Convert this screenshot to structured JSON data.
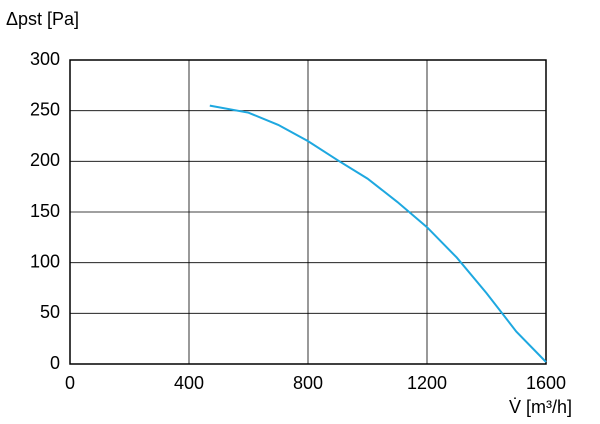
{
  "chart_data": {
    "type": "line",
    "ylabel": "Δpst [Pa]",
    "xlabel": "V̇ [m³/h]",
    "x": [
      470,
      600,
      700,
      800,
      900,
      1000,
      1100,
      1200,
      1300,
      1400,
      1500,
      1600
    ],
    "values": [
      255,
      248,
      236,
      220,
      201,
      183,
      160,
      135,
      105,
      70,
      32,
      2
    ],
    "color": "#1ea8e0",
    "xlim": [
      0,
      1600
    ],
    "xticks": [
      0,
      400,
      800,
      1200,
      1600
    ],
    "ylim": [
      0,
      300
    ],
    "yticks": [
      0,
      50,
      100,
      150,
      200,
      250,
      300
    ],
    "grid": true
  }
}
